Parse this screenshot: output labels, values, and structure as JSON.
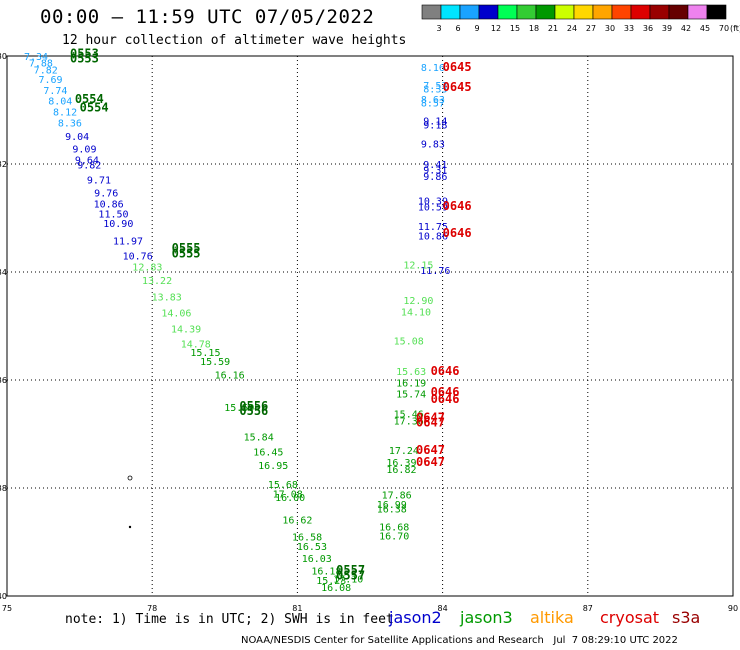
{
  "header": {
    "title": "00:00 – 11:59 UTC 07/05/2022",
    "subtitle": "12 hour collection of altimeter wave heights"
  },
  "colorbar": {
    "ticks": [
      "3",
      "6",
      "9",
      "12",
      "15",
      "18",
      "21",
      "24",
      "27",
      "30",
      "33",
      "36",
      "39",
      "42",
      "45",
      "70"
    ],
    "unit": "(ft)",
    "colors": [
      "#808080",
      "#00e5ff",
      "#1aa3ff",
      "#0000cc",
      "#00ff55",
      "#33cc33",
      "#009900",
      "#ccff00",
      "#ffd700",
      "#ffa500",
      "#ff4400",
      "#dd0000",
      "#990000",
      "#660000",
      "#ee82ee",
      "#000000"
    ]
  },
  "footer": {
    "note": "note: 1) Time is in UTC; 2) SWH is in feet",
    "credit": "NOAA/NESDIS Center for Satellite Applications and Research   Jul  7 08:29:10 UTC 2022",
    "satellites": [
      {
        "name": "jason2",
        "color": "#0000cc"
      },
      {
        "name": "jason3",
        "color": "#009900"
      },
      {
        "name": "altika",
        "color": "#ff9900"
      },
      {
        "name": "cryosat",
        "color": "#dd0000"
      },
      {
        "name": "s3a",
        "color": "#990000"
      }
    ]
  },
  "chart_data": {
    "type": "scatter",
    "title": "00:00 – 11:59 UTC 07/05/2022",
    "subtitle": "12 hour collection of altimeter wave heights",
    "xlabel": "",
    "ylabel": "",
    "xlim": [
      75,
      90
    ],
    "ylim": [
      -40,
      -30
    ],
    "x_ticks": [
      "75",
      "78",
      "81",
      "84",
      "87",
      "90"
    ],
    "y_ticks": [
      "-30",
      "-32",
      "-34",
      "-36",
      "-38",
      "-40"
    ],
    "grid": true,
    "series": [
      {
        "name": "jason2",
        "color": "#0000cc",
        "points": [
          [
            83.85,
            -31.19,
            "9.14"
          ],
          [
            83.85,
            -31.27,
            "9.18"
          ],
          [
            83.8,
            -31.62,
            "9.83"
          ],
          [
            83.85,
            -32.0,
            "9.41"
          ],
          [
            83.85,
            -32.1,
            "9.31"
          ],
          [
            83.85,
            -32.22,
            "9.86"
          ],
          [
            83.8,
            -32.68,
            "10.39"
          ],
          [
            83.8,
            -32.79,
            "10.59"
          ],
          [
            83.8,
            -33.15,
            "11.75"
          ],
          [
            83.8,
            -33.32,
            "10.86"
          ],
          [
            83.85,
            -33.96,
            "11.76"
          ],
          [
            76.45,
            -31.48,
            "9.04"
          ],
          [
            76.6,
            -31.71,
            "9.09"
          ],
          [
            76.65,
            -31.92,
            "9.64"
          ],
          [
            76.7,
            -32.01,
            "9.82"
          ],
          [
            76.9,
            -32.29,
            "9.71"
          ],
          [
            77.05,
            -32.53,
            "9.76"
          ],
          [
            77.1,
            -32.73,
            "10.86"
          ],
          [
            77.2,
            -32.92,
            "11.50"
          ],
          [
            77.3,
            -33.09,
            "10.90"
          ],
          [
            77.5,
            -33.42,
            "11.97"
          ],
          [
            77.7,
            -33.69,
            "10.76"
          ]
        ]
      },
      {
        "name": "jason3",
        "color": "#009900",
        "points": [
          [
            79.1,
            -35.48,
            "15.15"
          ],
          [
            79.3,
            -35.65,
            "15.59"
          ],
          [
            79.6,
            -35.9,
            "16.16"
          ],
          [
            79.8,
            -36.5,
            "15.59"
          ],
          [
            80.2,
            -37.05,
            "15.84"
          ],
          [
            80.4,
            -37.32,
            "16.45"
          ],
          [
            80.5,
            -37.57,
            "16.95"
          ],
          [
            80.7,
            -37.93,
            "15.68"
          ],
          [
            80.8,
            -38.1,
            "17.08"
          ],
          [
            80.85,
            -38.17,
            "16.00"
          ],
          [
            81.0,
            -38.58,
            "16.62"
          ],
          [
            81.2,
            -38.9,
            "16.58"
          ],
          [
            81.3,
            -39.07,
            "16.53"
          ],
          [
            81.4,
            -39.3,
            "16.03"
          ],
          [
            81.6,
            -39.53,
            "16.18"
          ],
          [
            81.7,
            -39.7,
            "15.23"
          ],
          [
            81.8,
            -39.83,
            "16.08"
          ],
          [
            82.05,
            -39.68,
            "17.10"
          ],
          [
            83.05,
            -38.12,
            "17.86"
          ],
          [
            82.95,
            -38.3,
            "16.99"
          ],
          [
            82.95,
            -38.38,
            "16.38"
          ],
          [
            83.0,
            -38.71,
            "16.68"
          ],
          [
            83.0,
            -38.88,
            "16.70"
          ],
          [
            83.15,
            -37.52,
            "16.39"
          ],
          [
            83.15,
            -37.65,
            "16.82"
          ],
          [
            83.2,
            -37.3,
            "17.24"
          ],
          [
            83.3,
            -36.62,
            "15.46"
          ],
          [
            83.3,
            -36.75,
            "17.36"
          ],
          [
            83.35,
            -36.05,
            "16.19"
          ],
          [
            83.35,
            -36.25,
            "15.74"
          ]
        ]
      },
      {
        "name": "jason3-light",
        "color": "#55e055",
        "points": [
          [
            83.5,
            -33.86,
            "12.15"
          ],
          [
            83.5,
            -34.52,
            "12.90"
          ],
          [
            83.45,
            -34.73,
            "14.10"
          ],
          [
            83.3,
            -35.27,
            "15.08"
          ],
          [
            83.35,
            -35.83,
            "15.63"
          ],
          [
            77.9,
            -33.9,
            "12.83"
          ],
          [
            78.1,
            -34.15,
            "13.22"
          ],
          [
            78.3,
            -34.45,
            "13.83"
          ],
          [
            78.5,
            -34.75,
            "14.06"
          ],
          [
            78.7,
            -35.05,
            "14.39"
          ],
          [
            78.9,
            -35.32,
            "14.78"
          ]
        ]
      },
      {
        "name": "altika",
        "color": "#1aa3ff",
        "points": [
          [
            83.8,
            -30.2,
            "8.16"
          ],
          [
            83.85,
            -30.54,
            "7.53"
          ],
          [
            83.85,
            -30.6,
            "8.33"
          ],
          [
            83.8,
            -30.8,
            "8.63"
          ],
          [
            83.8,
            -30.86,
            "8.57"
          ],
          [
            75.6,
            -30.0,
            "7.34"
          ],
          [
            75.7,
            -30.12,
            "7.88"
          ],
          [
            75.8,
            -30.25,
            "7.82"
          ],
          [
            75.9,
            -30.43,
            "7.69"
          ],
          [
            76.0,
            -30.63,
            "7.74"
          ],
          [
            76.1,
            -30.82,
            "8.04"
          ],
          [
            76.2,
            -31.03,
            "8.12"
          ],
          [
            76.3,
            -31.23,
            "8.36"
          ]
        ]
      },
      {
        "name": "track-times",
        "color": "#dd0000",
        "points": [
          [
            84.3,
            -30.2,
            "0645"
          ],
          [
            84.3,
            -30.57,
            "0645"
          ],
          [
            84.3,
            -32.78,
            "0646"
          ],
          [
            84.3,
            -33.28,
            "0646"
          ],
          [
            84.05,
            -35.83,
            "0646"
          ],
          [
            84.05,
            -36.22,
            "0646"
          ],
          [
            84.05,
            -36.35,
            "0646"
          ],
          [
            83.75,
            -36.69,
            "0647"
          ],
          [
            83.75,
            -36.79,
            "0647"
          ],
          [
            83.75,
            -37.3,
            "0647"
          ],
          [
            83.75,
            -37.52,
            "0647"
          ]
        ]
      },
      {
        "name": "jason3-times",
        "color": "#006600",
        "points": [
          [
            76.6,
            -29.95,
            "0553"
          ],
          [
            76.6,
            -30.05,
            "0553"
          ],
          [
            76.7,
            -30.8,
            "0554"
          ],
          [
            76.8,
            -30.95,
            "0554"
          ],
          [
            78.7,
            -33.56,
            "0555"
          ],
          [
            78.7,
            -33.66,
            "0555"
          ],
          [
            80.1,
            -36.48,
            "0556"
          ],
          [
            80.1,
            -36.57,
            "0556"
          ],
          [
            82.1,
            -39.52,
            "0557"
          ],
          [
            82.1,
            -39.62,
            "0557"
          ]
        ]
      }
    ]
  }
}
